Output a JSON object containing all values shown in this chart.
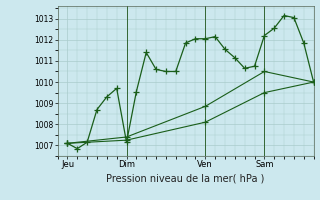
{
  "title": "Pression niveau de la mer( hPa )",
  "bg_color": "#cce8ee",
  "grid_color": "#aacccc",
  "line_color": "#1a5e1a",
  "marker": "+",
  "marker_size": 4,
  "ylim": [
    1006.5,
    1013.6
  ],
  "yticks": [
    1007,
    1008,
    1009,
    1010,
    1011,
    1012,
    1013
  ],
  "xtick_labels": [
    "Jeu",
    "Dim",
    "Ven",
    "Sam"
  ],
  "xtick_positions": [
    0,
    24,
    56,
    80
  ],
  "xlim": [
    -4,
    100
  ],
  "vlines": [
    24,
    56,
    80
  ],
  "line1_x": [
    0,
    4,
    8,
    12,
    16,
    20,
    24,
    28,
    32,
    36,
    40,
    44,
    48,
    52,
    56,
    60,
    64,
    68,
    72,
    76,
    80,
    84,
    88,
    92,
    96,
    100
  ],
  "line1_y": [
    1007.1,
    1006.85,
    1007.15,
    1008.7,
    1009.3,
    1009.7,
    1007.15,
    1009.55,
    1011.4,
    1010.6,
    1010.5,
    1010.5,
    1011.85,
    1012.05,
    1012.05,
    1012.15,
    1011.55,
    1011.15,
    1010.65,
    1010.75,
    1012.2,
    1012.55,
    1013.15,
    1013.05,
    1011.85,
    1010.0
  ],
  "line2_x": [
    0,
    24,
    56,
    80,
    100
  ],
  "line2_y": [
    1007.1,
    1007.25,
    1008.1,
    1009.5,
    1010.0
  ],
  "line3_x": [
    0,
    24,
    56,
    80,
    100
  ],
  "line3_y": [
    1007.1,
    1007.4,
    1008.85,
    1010.5,
    1010.0
  ]
}
